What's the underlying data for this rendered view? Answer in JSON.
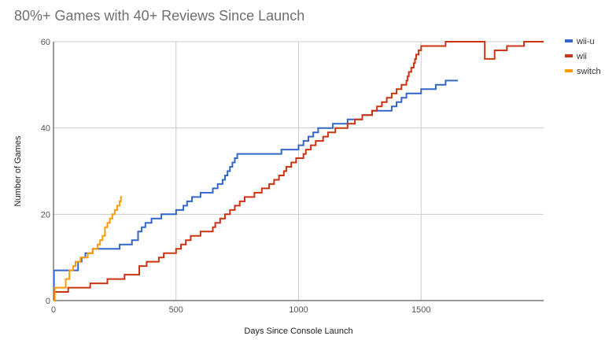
{
  "chart_data": {
    "type": "line",
    "title": "80%+ Games with 40+ Reviews Since Launch",
    "xlabel": "Days Since Console Launch",
    "ylabel": "Number of Games",
    "xlim": [
      0,
      2000
    ],
    "ylim": [
      0,
      60
    ],
    "x_ticks": [
      0,
      500,
      1000,
      1500
    ],
    "y_ticks": [
      0,
      20,
      40,
      60
    ],
    "grid": true,
    "legend_position": "top-right",
    "series": [
      {
        "name": "wii-u",
        "color": "#3366cc",
        "x": [
          0,
          2,
          60,
          100,
          115,
          130,
          160,
          200,
          250,
          270,
          290,
          320,
          345,
          360,
          375,
          400,
          440,
          500,
          530,
          545,
          565,
          600,
          650,
          670,
          690,
          700,
          710,
          720,
          730,
          740,
          750,
          800,
          930,
          1000,
          1020,
          1040,
          1060,
          1080,
          1100,
          1140,
          1200,
          1260,
          1300,
          1380,
          1400,
          1420,
          1440,
          1500,
          1520,
          1560,
          1600,
          1650
        ],
        "y": [
          0,
          7,
          7,
          9,
          10,
          11,
          12,
          12,
          12,
          13,
          13,
          14,
          16,
          17,
          18,
          19,
          20,
          21,
          22,
          23,
          24,
          25,
          26,
          27,
          28,
          29,
          30,
          31,
          32,
          33,
          34,
          34,
          35,
          36,
          37,
          38,
          39,
          40,
          40,
          41,
          42,
          43,
          44,
          45,
          46,
          47,
          48,
          49,
          49,
          50,
          51,
          51
        ]
      },
      {
        "name": "wii",
        "color": "#cc3311",
        "x": [
          0,
          2,
          60,
          150,
          220,
          290,
          350,
          380,
          430,
          450,
          500,
          520,
          540,
          560,
          600,
          650,
          660,
          680,
          700,
          720,
          740,
          760,
          780,
          820,
          850,
          880,
          900,
          920,
          940,
          950,
          970,
          990,
          1020,
          1030,
          1050,
          1070,
          1100,
          1120,
          1150,
          1200,
          1230,
          1260,
          1300,
          1320,
          1340,
          1360,
          1380,
          1400,
          1420,
          1440,
          1445,
          1450,
          1460,
          1470,
          1475,
          1480,
          1490,
          1500,
          1600,
          1760,
          1800,
          1850,
          1920,
          1980,
          2000
        ],
        "y": [
          0,
          2,
          3,
          4,
          5,
          6,
          8,
          9,
          10,
          11,
          12,
          13,
          14,
          15,
          16,
          17,
          18,
          19,
          20,
          21,
          22,
          23,
          24,
          25,
          26,
          27,
          28,
          29,
          30,
          31,
          32,
          33,
          34,
          35,
          36,
          37,
          38,
          39,
          40,
          41,
          42,
          43,
          44,
          45,
          46,
          47,
          48,
          49,
          50,
          51,
          52,
          53,
          54,
          55,
          56,
          57,
          58,
          59,
          60,
          56,
          58,
          59,
          60,
          60,
          60
        ]
      },
      {
        "name": "switch",
        "color": "#ff9900",
        "x": [
          0,
          5,
          50,
          65,
          80,
          90,
          110,
          140,
          160,
          180,
          190,
          200,
          210,
          220,
          230,
          240,
          250,
          260,
          270,
          275,
          280
        ],
        "y": [
          0,
          3,
          5,
          7,
          8,
          9,
          10,
          11,
          12,
          13,
          14,
          15,
          17,
          18,
          19,
          20,
          21,
          22,
          23,
          24,
          24
        ]
      }
    ]
  }
}
